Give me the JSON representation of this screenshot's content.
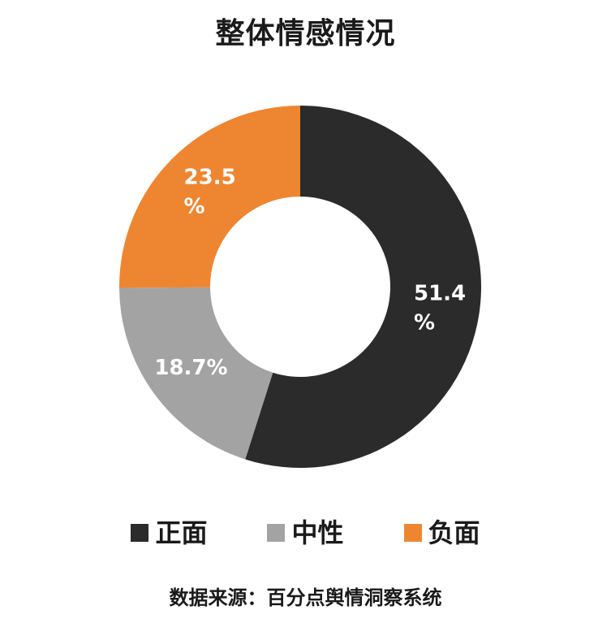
{
  "title": "整体情感情况",
  "chart_data": {
    "type": "pie",
    "categories": [
      "正面",
      "中性",
      "负面"
    ],
    "values": [
      51.4,
      18.7,
      23.5
    ],
    "labels": [
      "51.4\n%",
      "18.7%",
      "23.5\n%"
    ],
    "colors": [
      "#2b2b2b",
      "#a3a3a3",
      "#ee8631"
    ],
    "legend_position": "bottom"
  },
  "legend": [
    {
      "label": "正面",
      "color": "#2b2b2b"
    },
    {
      "label": "中性",
      "color": "#a3a3a3"
    },
    {
      "label": "负面",
      "color": "#ee8631"
    }
  ],
  "source": "数据来源：百分点舆情洞察系统"
}
